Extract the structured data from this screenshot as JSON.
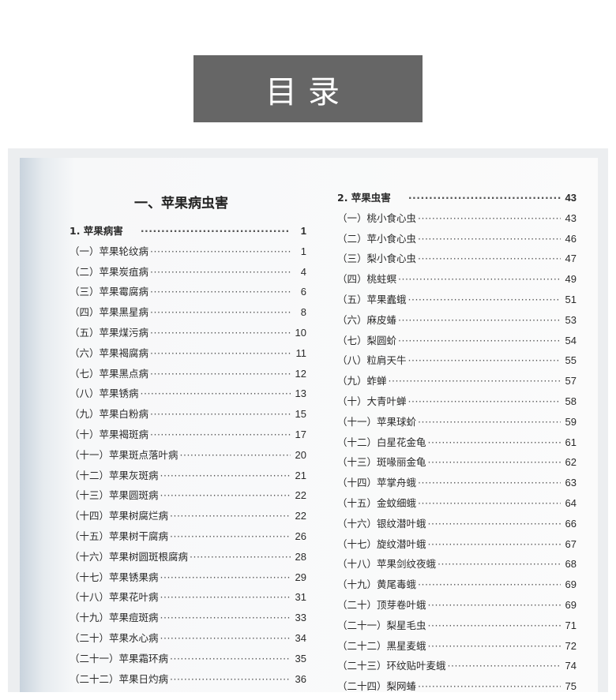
{
  "banner": {
    "title": "目录"
  },
  "heading": "一、苹果病虫害",
  "left": {
    "section": {
      "label": "1. 苹果病害",
      "page": "1"
    },
    "items": [
      {
        "label": "（一）苹果轮纹病",
        "page": "1"
      },
      {
        "label": "（二）苹果炭疽病",
        "page": "4"
      },
      {
        "label": "（三）苹果霉腐病",
        "page": "6"
      },
      {
        "label": "（四）苹果黑星病",
        "page": "8"
      },
      {
        "label": "（五）苹果煤污病",
        "page": "10"
      },
      {
        "label": "（六）苹果褐腐病",
        "page": "11"
      },
      {
        "label": "（七）苹果黑点病",
        "page": "12"
      },
      {
        "label": "（八）苹果锈病",
        "page": "13"
      },
      {
        "label": "（九）苹果白粉病",
        "page": "15"
      },
      {
        "label": "（十）苹果褐斑病",
        "page": "17"
      },
      {
        "label": "（十一）苹果斑点落叶病",
        "page": "20"
      },
      {
        "label": "（十二）苹果灰斑病",
        "page": "21"
      },
      {
        "label": "（十三）苹果圆斑病",
        "page": "22"
      },
      {
        "label": "（十四）苹果树腐烂病",
        "page": "22"
      },
      {
        "label": "（十五）苹果树干腐病",
        "page": "26"
      },
      {
        "label": "（十六）苹果树圆斑根腐病",
        "page": "28"
      },
      {
        "label": "（十七）苹果锈果病",
        "page": "29"
      },
      {
        "label": "（十八）苹果花叶病",
        "page": "31"
      },
      {
        "label": "（十九）苹果痘斑病",
        "page": "33"
      },
      {
        "label": "（二十）苹果水心病",
        "page": "34"
      },
      {
        "label": "（二十一）苹果霜环病",
        "page": "35"
      },
      {
        "label": "（二十二）苹果日灼病",
        "page": "36"
      }
    ]
  },
  "right": {
    "section": {
      "label": "2. 苹果虫害",
      "page": "43"
    },
    "items": [
      {
        "label": "（一）桃小食心虫",
        "page": "43"
      },
      {
        "label": "（二）苹小食心虫",
        "page": "46"
      },
      {
        "label": "（三）梨小食心虫",
        "page": "47"
      },
      {
        "label": "（四）桃蛀螟",
        "page": "49"
      },
      {
        "label": "（五）苹果蠹蛾",
        "page": "51"
      },
      {
        "label": "（六）麻皮蝽",
        "page": "53"
      },
      {
        "label": "（七）梨圆蚧",
        "page": "54"
      },
      {
        "label": "（八）粒肩天牛",
        "page": "55"
      },
      {
        "label": "（九）蚱蝉",
        "page": "57"
      },
      {
        "label": "（十）大青叶蝉",
        "page": "58"
      },
      {
        "label": "（十一）苹果球蚧",
        "page": "59"
      },
      {
        "label": "（十二）白星花金龟",
        "page": "61"
      },
      {
        "label": "（十三）斑喙丽金龟",
        "page": "62"
      },
      {
        "label": "（十四）苹掌舟蛾",
        "page": "63"
      },
      {
        "label": "（十五）金蚊细蛾",
        "page": "64"
      },
      {
        "label": "（十六）银纹潜叶蛾",
        "page": "66"
      },
      {
        "label": "（十七）旋纹潜叶蛾",
        "page": "67"
      },
      {
        "label": "（十八）苹果剑纹夜蛾",
        "page": "68"
      },
      {
        "label": "（十九）黄尾毒蛾",
        "page": "69"
      },
      {
        "label": "（二十）顶芽卷叶蛾",
        "page": "69"
      },
      {
        "label": "（二十一）梨星毛虫",
        "page": "71"
      },
      {
        "label": "（二十二）黑星麦蛾",
        "page": "72"
      },
      {
        "label": "（二十三）环纹贴叶麦蛾",
        "page": "74"
      },
      {
        "label": "（二十四）梨网蝽",
        "page": "75"
      }
    ]
  }
}
